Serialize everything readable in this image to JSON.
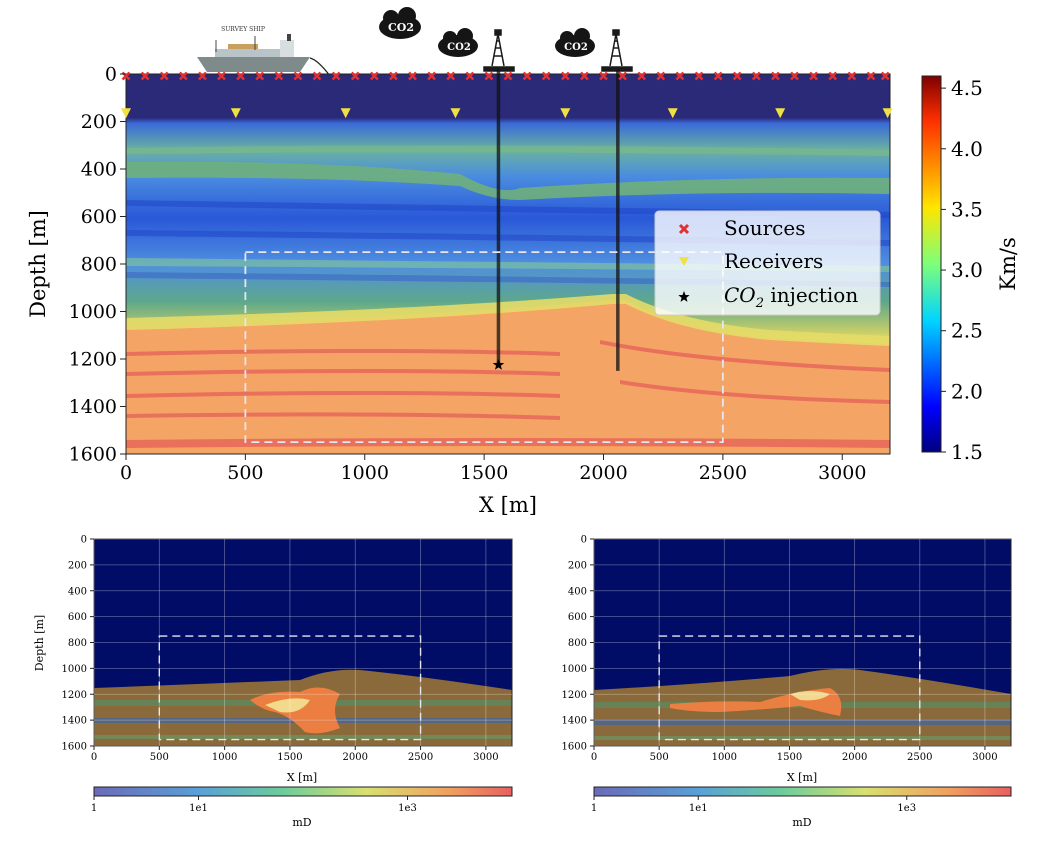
{
  "illustration": {
    "ship_label": "SURVEY SHIP",
    "cloud_labels": [
      "CO2",
      "CO2",
      "CO2"
    ]
  },
  "chart_data": [
    {
      "type": "heatmap",
      "title": "",
      "xlabel": "X [m]",
      "ylabel": "Depth [m]",
      "xlim": [
        0,
        3200
      ],
      "ylim": [
        1600,
        0
      ],
      "xticks": [
        0,
        500,
        1000,
        1500,
        2000,
        2500,
        3000
      ],
      "yticks": [
        0,
        200,
        400,
        600,
        800,
        1000,
        1200,
        1400,
        1600
      ],
      "colorbar": {
        "label": "Km/s",
        "range": [
          1.5,
          4.6
        ],
        "ticks": [
          1.5,
          2.0,
          2.5,
          3.0,
          3.5,
          4.0,
          4.5
        ],
        "tick_labels": [
          "1.5",
          "2.0",
          "2.5",
          "3.0",
          "3.5",
          "4.0",
          "4.5"
        ]
      },
      "legend": {
        "placement": "center-right",
        "entries": [
          {
            "label": "Sources",
            "marker": "x",
            "color": "#e03030"
          },
          {
            "label": "Receivers",
            "marker": "triangle-down",
            "color": "#f0e040"
          },
          {
            "label_prefix": "CO",
            "label_sub": "2",
            "label_suffix": " injection",
            "marker": "star",
            "color": "#000000"
          }
        ]
      },
      "sources": {
        "depth": 0,
        "x": [
          0,
          80,
          160,
          240,
          320,
          400,
          480,
          560,
          640,
          720,
          800,
          880,
          960,
          1040,
          1120,
          1200,
          1280,
          1360,
          1440,
          1520,
          1600,
          1680,
          1760,
          1840,
          1920,
          2000,
          2080,
          2160,
          2240,
          2320,
          2400,
          2480,
          2560,
          2640,
          2720,
          2800,
          2880,
          2960,
          3040,
          3120,
          3180
        ]
      },
      "receivers": {
        "depth": 165,
        "x": [
          0,
          460,
          920,
          1380,
          1840,
          2290,
          2740,
          3190
        ]
      },
      "wells": [
        {
          "x": 1560,
          "depth": 1230
        },
        {
          "x": 2060,
          "depth": 1250
        }
      ],
      "injection": {
        "x": 1560,
        "depth": 1225
      },
      "region_box": {
        "x": [
          500,
          2500
        ],
        "depth": [
          750,
          1550
        ]
      }
    },
    {
      "type": "heatmap",
      "xlabel": "X [m]",
      "ylabel": "Depth [m]",
      "xlim": [
        0,
        3200
      ],
      "ylim": [
        1600,
        0
      ],
      "xticks": [
        0,
        500,
        1000,
        1500,
        2000,
        2500,
        3000
      ],
      "yticks": [
        0,
        200,
        400,
        600,
        800,
        1000,
        1200,
        1400,
        1600
      ],
      "region_box": {
        "x": [
          500,
          2500
        ],
        "depth": [
          750,
          1550
        ]
      },
      "colorbar": {
        "label": "mD",
        "scale": "log",
        "range": [
          1,
          10000
        ],
        "ticks": [
          1,
          10,
          1000
        ],
        "tick_labels": [
          "1",
          "1e1",
          "1e3"
        ]
      }
    },
    {
      "type": "heatmap",
      "xlabel": "X [m]",
      "ylabel": "",
      "xlim": [
        0,
        3200
      ],
      "ylim": [
        1600,
        0
      ],
      "xticks": [
        0,
        500,
        1000,
        1500,
        2000,
        2500,
        3000
      ],
      "yticks": [
        0,
        200,
        400,
        600,
        800,
        1000,
        1200,
        1400,
        1600
      ],
      "region_box": {
        "x": [
          500,
          2500
        ],
        "depth": [
          750,
          1550
        ]
      },
      "colorbar": {
        "label": "mD",
        "scale": "log",
        "range": [
          1,
          10000
        ],
        "ticks": [
          1,
          10,
          1000
        ],
        "tick_labels": [
          "1",
          "1e1",
          "1e3"
        ]
      }
    }
  ]
}
